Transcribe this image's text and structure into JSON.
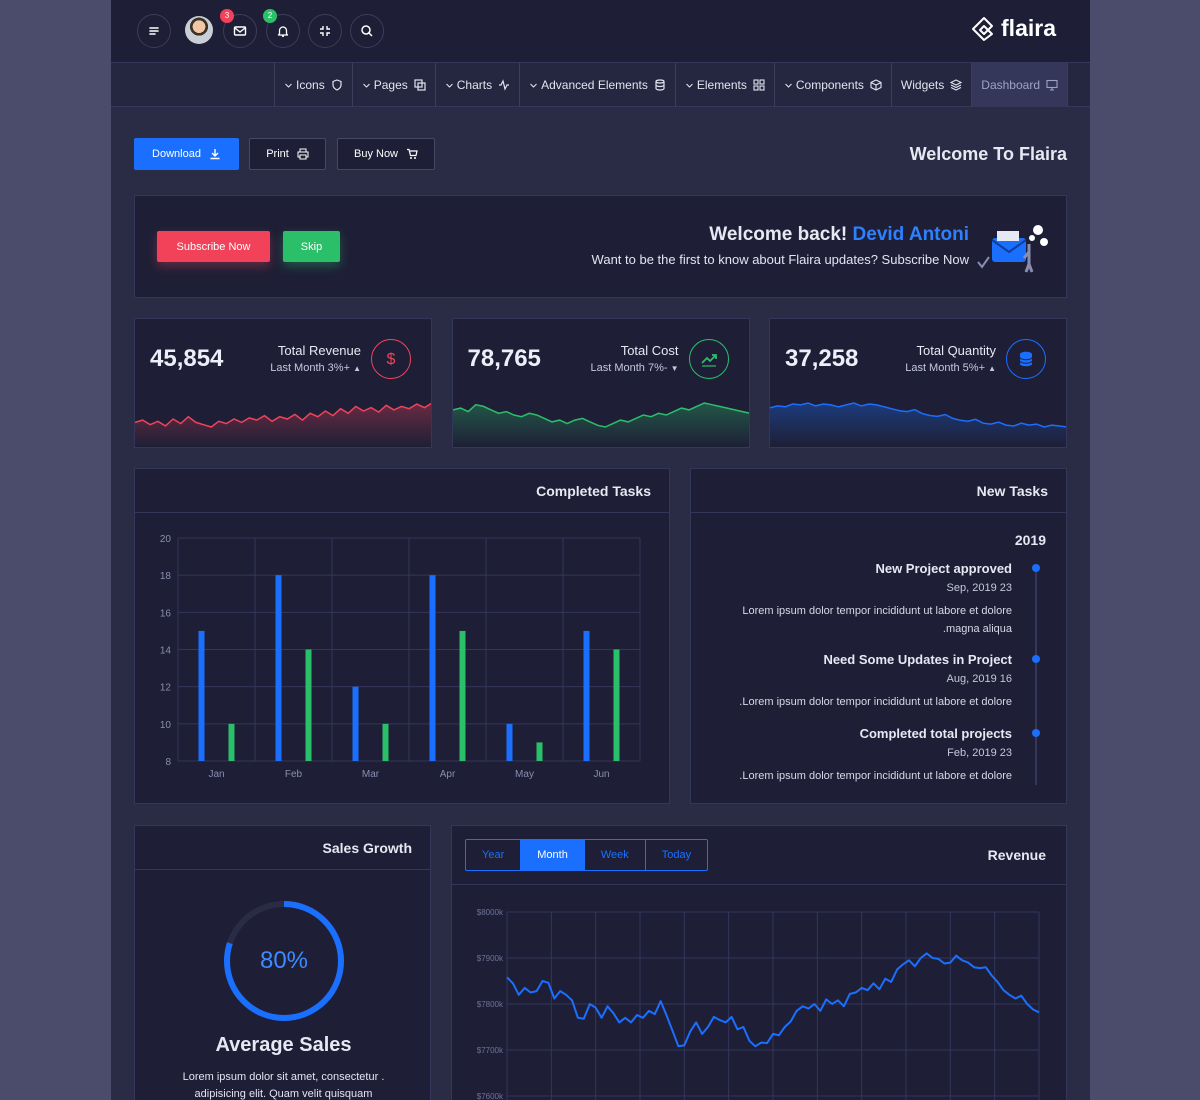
{
  "topbar": {
    "mail_badge": "3",
    "bell_badge": "2",
    "brand": "flaira"
  },
  "menu": [
    {
      "label": "Icons",
      "icon": "shield-icon",
      "has_chevron": true
    },
    {
      "label": "Pages",
      "icon": "copy-icon",
      "has_chevron": true
    },
    {
      "label": "Charts",
      "icon": "activity-icon",
      "has_chevron": true
    },
    {
      "label": "Advanced Elements",
      "icon": "database-icon",
      "has_chevron": true
    },
    {
      "label": "Elements",
      "icon": "grid-icon",
      "has_chevron": true
    },
    {
      "label": "Components",
      "icon": "box-icon",
      "has_chevron": true
    },
    {
      "label": "Widgets",
      "icon": "layers-icon",
      "has_chevron": false
    },
    {
      "label": "Dashboard",
      "icon": "monitor-icon",
      "has_chevron": false,
      "active": true
    }
  ],
  "actions": {
    "download": "Download",
    "print": "Print",
    "buy_now": "Buy Now",
    "page_title": "Welcome To Flaira"
  },
  "welcome": {
    "subscribe": "Subscribe Now",
    "skip": "Skip",
    "greeting": "Welcome back!",
    "user": "Devid Antoni",
    "message": "Want to be the first to know about Flaira updates? Subscribe Now"
  },
  "stats": [
    {
      "value": "45,854",
      "title": "Total Revenue",
      "sub": "Last Month 3%+",
      "trend": "up",
      "icon": "dollar-icon",
      "color": "#f1425a",
      "spark": [
        30,
        32,
        28,
        31,
        27,
        33,
        29,
        35,
        30,
        28,
        26,
        31,
        29,
        33,
        30,
        34,
        32,
        36,
        31,
        35,
        33,
        37,
        32,
        38,
        35,
        40,
        36,
        42,
        38,
        44,
        40,
        43,
        39,
        45,
        41,
        44,
        42,
        46,
        43,
        47
      ]
    },
    {
      "value": "78,765",
      "title": "Total Cost",
      "sub": "Last Month 7%-",
      "trend": "down",
      "icon": "trending-up-icon",
      "color": "#2bbf6a",
      "spark": [
        40,
        41,
        39,
        43,
        42,
        40,
        38,
        39,
        37,
        36,
        38,
        37,
        35,
        33,
        34,
        32,
        34,
        35,
        33,
        31,
        30,
        32,
        34,
        33,
        35,
        37,
        36,
        38,
        37,
        39,
        41,
        40,
        42,
        44,
        43,
        42,
        41,
        40,
        39,
        38
      ]
    },
    {
      "value": "37,258",
      "title": "Total Quantity",
      "sub": "Last Month 5%+",
      "trend": "up",
      "icon": "database-icon",
      "color": "#1a6fff",
      "spark": [
        44,
        46,
        45,
        48,
        47,
        49,
        46,
        48,
        47,
        45,
        47,
        49,
        46,
        48,
        47,
        45,
        43,
        41,
        40,
        42,
        38,
        36,
        35,
        37,
        33,
        31,
        30,
        32,
        28,
        27,
        29,
        26,
        25,
        28,
        26,
        27,
        24,
        26,
        25,
        24
      ]
    }
  ],
  "completed_tasks": {
    "title": "Completed Tasks"
  },
  "new_tasks": {
    "title": "New Tasks",
    "year": "2019",
    "items": [
      {
        "title": "New Project approved",
        "date": "Sep, 2019 23",
        "text": "Lorem ipsum dolor tempor incididunt ut labore et dolore .magna aliqua"
      },
      {
        "title": "Need Some Updates in Project",
        "date": "Aug, 2019 16",
        "text": ".Lorem ipsum dolor tempor incididunt ut labore et dolore"
      },
      {
        "title": "Completed total projects",
        "date": "Feb, 2019 23",
        "text": ".Lorem ipsum dolor tempor incididunt ut labore et dolore"
      }
    ]
  },
  "sales_growth": {
    "title": "Sales Growth",
    "percent_label": "80%",
    "percent": 0.8,
    "heading": "Average Sales",
    "text": "Lorem ipsum dolor sit amet, consectetur . adipisicing elit. Quam velit quisquam"
  },
  "revenue": {
    "title": "Revenue",
    "tabs": [
      "Year",
      "Month",
      "Week",
      "Today"
    ],
    "active_tab": "Month"
  },
  "chart_data": [
    {
      "type": "bar",
      "categories": [
        "Jan",
        "Feb",
        "Mar",
        "Apr",
        "May",
        "Jun"
      ],
      "series": [
        {
          "values": [
            15,
            18,
            12,
            18,
            10,
            15
          ],
          "color": "#1a6fff"
        },
        {
          "values": [
            10,
            14,
            10,
            15,
            9,
            14
          ],
          "color": "#2bbf6a"
        }
      ],
      "ylim": [
        8,
        20
      ],
      "yticks": [
        8,
        10,
        12,
        14,
        16,
        18,
        20
      ],
      "grid": true
    },
    {
      "type": "line",
      "yticks": [
        "$7600k",
        "$7700k",
        "$7800k",
        "$7900k",
        "$8000k"
      ],
      "ylim": [
        7600,
        8000
      ],
      "color": "#1a6fff",
      "grid": true,
      "values": [
        7858,
        7845,
        7820,
        7835,
        7825,
        7828,
        7850,
        7846,
        7812,
        7828,
        7820,
        7808,
        7770,
        7768,
        7800,
        7792,
        7770,
        7795,
        7780,
        7760,
        7770,
        7760,
        7776,
        7770,
        7785,
        7778,
        7806,
        7775,
        7742,
        7708,
        7710,
        7740,
        7760,
        7735,
        7750,
        7772,
        7765,
        7760,
        7772,
        7745,
        7750,
        7720,
        7708,
        7716,
        7715,
        7735,
        7732,
        7750,
        7762,
        7785,
        7795,
        7790,
        7800,
        7785,
        7810,
        7800,
        7808,
        7795,
        7822,
        7825,
        7835,
        7830,
        7845,
        7832,
        7855,
        7848,
        7875,
        7886,
        7895,
        7882,
        7900,
        7910,
        7900,
        7898,
        7888,
        7890,
        7905,
        7895,
        7890,
        7880,
        7878,
        7880,
        7862,
        7848,
        7830,
        7820,
        7812,
        7818,
        7800,
        7788,
        7782
      ]
    }
  ]
}
